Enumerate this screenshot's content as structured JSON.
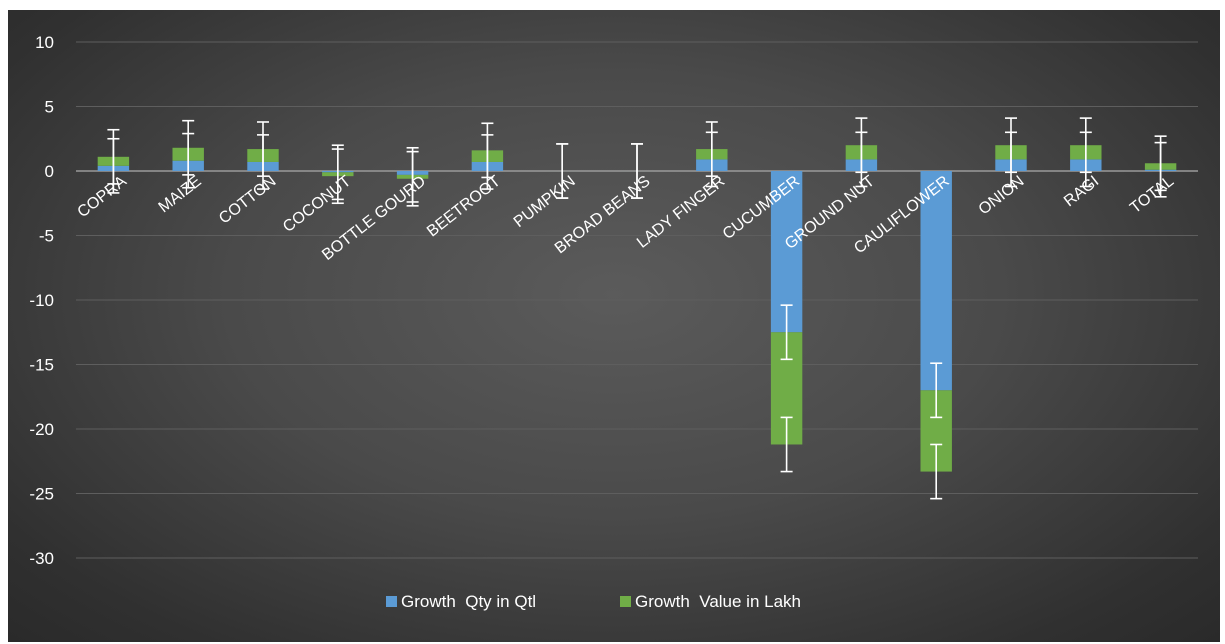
{
  "chart_data": {
    "type": "bar",
    "stacked": true,
    "categories": [
      "COPRA",
      "MAIZE",
      "COTTON",
      "COCONUT",
      "BOTTLE GOURD",
      "BEETROOT",
      "PUMPKIN",
      "BROAD BEANS",
      "LADY FINGER",
      "CUCUMBER",
      "GROUND NUT",
      "CAULIFLOWER",
      "ONION",
      "RAGI",
      "TOTAL"
    ],
    "series": [
      {
        "name": "Growth  Qty in Qtl",
        "color": "#5b9bd5",
        "values": [
          0.4,
          0.8,
          0.7,
          -0.1,
          -0.3,
          0.7,
          0.0,
          0.0,
          0.9,
          -12.5,
          0.9,
          -17.0,
          0.9,
          0.9,
          0.1
        ]
      },
      {
        "name": "Growth  Value in Lakh",
        "color": "#70ad47",
        "values": [
          0.7,
          1.0,
          1.0,
          -0.3,
          -0.3,
          0.9,
          0.0,
          0.0,
          0.8,
          -8.7,
          1.1,
          -6.3,
          1.1,
          1.1,
          0.5
        ]
      }
    ],
    "error_bar": 2.1,
    "yticks": [
      "10",
      "5",
      "0",
      "-5",
      "-10",
      "-15",
      "-20",
      "-25",
      "-30"
    ],
    "ylim": [
      -30,
      10
    ],
    "grid": true,
    "legend": "bottom",
    "title": "",
    "xlabel": "",
    "ylabel": ""
  }
}
